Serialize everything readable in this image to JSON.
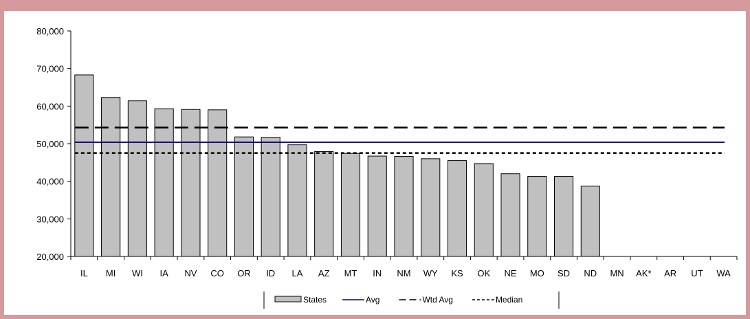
{
  "chart_data": {
    "type": "bar",
    "categories": [
      "IL",
      "MI",
      "WI",
      "IA",
      "NV",
      "CO",
      "OR",
      "ID",
      "LA",
      "AZ",
      "MT",
      "IN",
      "NM",
      "WY",
      "KS",
      "OK",
      "NE",
      "MO",
      "SD",
      "ND",
      "MN",
      "AK*",
      "AR",
      "UT",
      "WA"
    ],
    "series": [
      {
        "name": "States",
        "values": [
          68300,
          62300,
          61400,
          59300,
          59100,
          59000,
          51800,
          51700,
          49700,
          47900,
          47400,
          46700,
          46600,
          46000,
          45500,
          44700,
          42000,
          41300,
          41300,
          38700,
          null,
          null,
          null,
          null,
          null
        ]
      }
    ],
    "reference_lines": [
      {
        "name": "Avg",
        "value": 50400,
        "style": "solid",
        "color": "#00007f"
      },
      {
        "name": "Wtd Avg",
        "value": 54300,
        "style": "long-dash",
        "color": "#000000"
      },
      {
        "name": "Median",
        "value": 47500,
        "style": "short-dash",
        "color": "#000000"
      }
    ],
    "ylim": [
      20000,
      80000
    ],
    "yticks": [
      "20,000",
      "30,000",
      "40,000",
      "50,000",
      "60,000",
      "70,000",
      "80,000"
    ],
    "ytick_values": [
      20000,
      30000,
      40000,
      50000,
      60000,
      70000,
      80000
    ],
    "bar_color": "#c0c0c0",
    "grid": false,
    "legend_position": "bottom-center",
    "title": "",
    "xlabel": "",
    "ylabel": ""
  }
}
